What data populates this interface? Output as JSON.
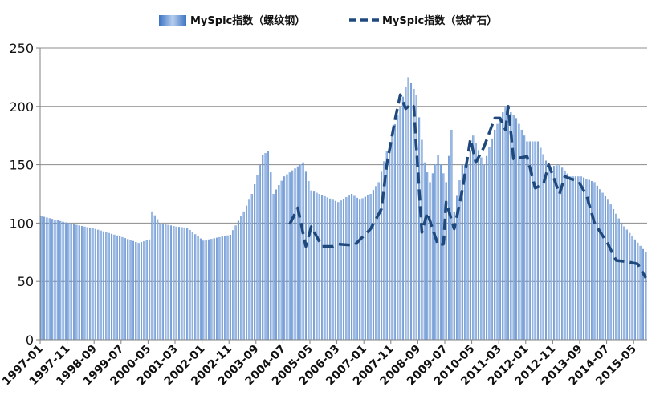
{
  "chart_data": {
    "type": "bar+line",
    "title": "",
    "xlabel": "",
    "ylabel": "",
    "ylim": [
      0,
      250
    ],
    "yticks": [
      0,
      50,
      100,
      150,
      200,
      250
    ],
    "grid": "horizontal",
    "legend_position": "top",
    "x_tick_labels": [
      "1997-01",
      "1997-11",
      "1998-09",
      "1999-07",
      "2000-05",
      "2001-03",
      "2002-01",
      "2002-11",
      "2003-09",
      "2004-07",
      "2005-05",
      "2006-03",
      "2007-01",
      "2007-11",
      "2008-09",
      "2009-07",
      "2010-05",
      "2011-03",
      "2012-01",
      "2012-11",
      "2013-09",
      "2014-07",
      "2015-05"
    ],
    "x_tick_month_index": [
      0,
      10,
      20,
      30,
      40,
      50,
      60,
      70,
      80,
      90,
      100,
      110,
      120,
      130,
      140,
      150,
      160,
      170,
      180,
      190,
      200,
      210,
      220
    ],
    "month_count": 225,
    "series": [
      {
        "name": "MySpic指数（螺纹钢）",
        "type": "bar",
        "color": "#5b8fd0",
        "start": "1997-01",
        "anchors": [
          [
            0,
            106
          ],
          [
            10,
            100
          ],
          [
            20,
            95
          ],
          [
            30,
            88
          ],
          [
            36,
            83
          ],
          [
            40,
            86
          ],
          [
            41,
            110
          ],
          [
            44,
            100
          ],
          [
            50,
            97
          ],
          [
            54,
            96
          ],
          [
            60,
            85
          ],
          [
            70,
            90
          ],
          [
            75,
            110
          ],
          [
            78,
            125
          ],
          [
            82,
            158
          ],
          [
            84,
            162
          ],
          [
            86,
            125
          ],
          [
            90,
            140
          ],
          [
            97,
            152
          ],
          [
            100,
            128
          ],
          [
            110,
            118
          ],
          [
            115,
            125
          ],
          [
            118,
            120
          ],
          [
            122,
            125
          ],
          [
            125,
            135
          ],
          [
            128,
            162
          ],
          [
            133,
            200
          ],
          [
            136,
            225
          ],
          [
            139,
            210
          ],
          [
            142,
            152
          ],
          [
            144,
            135
          ],
          [
            147,
            158
          ],
          [
            150,
            135
          ],
          [
            152,
            180
          ],
          [
            153,
            110
          ],
          [
            156,
            150
          ],
          [
            158,
            150
          ],
          [
            160,
            175
          ],
          [
            164,
            150
          ],
          [
            168,
            180
          ],
          [
            172,
            200
          ],
          [
            176,
            190
          ],
          [
            180,
            170
          ],
          [
            184,
            170
          ],
          [
            188,
            148
          ],
          [
            192,
            150
          ],
          [
            196,
            140
          ],
          [
            200,
            140
          ],
          [
            205,
            135
          ],
          [
            210,
            120
          ],
          [
            215,
            100
          ],
          [
            220,
            86
          ],
          [
            224,
            75
          ]
        ]
      },
      {
        "name": "MySpic指数（铁矿石）",
        "type": "line",
        "style": "dashed",
        "color": "#1f497d",
        "start": "2004-09",
        "anchors": [
          [
            92,
            99
          ],
          [
            95,
            113
          ],
          [
            98,
            80
          ],
          [
            100,
            97
          ],
          [
            104,
            80
          ],
          [
            108,
            80
          ],
          [
            110,
            82
          ],
          [
            116,
            81
          ],
          [
            122,
            95
          ],
          [
            126,
            112
          ],
          [
            128,
            150
          ],
          [
            131,
            188
          ],
          [
            133,
            210
          ],
          [
            135,
            198
          ],
          [
            137,
            202
          ],
          [
            138,
            200
          ],
          [
            141,
            92
          ],
          [
            143,
            109
          ],
          [
            147,
            81
          ],
          [
            149,
            82
          ],
          [
            150,
            118
          ],
          [
            153,
            95
          ],
          [
            156,
            128
          ],
          [
            159,
            172
          ],
          [
            161,
            152
          ],
          [
            164,
            165
          ],
          [
            168,
            190
          ],
          [
            170,
            190
          ],
          [
            172,
            180
          ],
          [
            173,
            200
          ],
          [
            175,
            155
          ],
          [
            180,
            157
          ],
          [
            183,
            130
          ],
          [
            186,
            133
          ],
          [
            188,
            150
          ],
          [
            190,
            138
          ],
          [
            192,
            125
          ],
          [
            194,
            140
          ],
          [
            196,
            138
          ],
          [
            199,
            136
          ],
          [
            202,
            124
          ],
          [
            205,
            100
          ],
          [
            210,
            82
          ],
          [
            213,
            68
          ],
          [
            217,
            67
          ],
          [
            221,
            65
          ],
          [
            224,
            53
          ]
        ]
      }
    ]
  }
}
